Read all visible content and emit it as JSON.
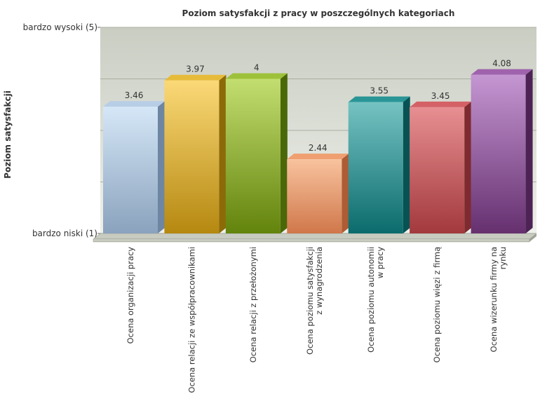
{
  "chart_data": {
    "type": "bar",
    "title": "Poziom satysfakcji z pracy w poszczególnych kategoriach",
    "ylabel": "Poziom satysfakcji",
    "xlabel": "",
    "ylim": [
      1,
      5
    ],
    "y_tick_labels": [
      {
        "value": 5,
        "label": "bardzo wysoki (5)"
      },
      {
        "value": 1,
        "label": "bardzo niski (1)"
      }
    ],
    "categories": [
      [
        "Ocena organizacji pracy"
      ],
      [
        "Ocena relacji ze współpracownikami"
      ],
      [
        "Ocena relacji z przełożonymi"
      ],
      [
        "Ocena poziomu satysfakcji",
        "z wynagrodzenia"
      ],
      [
        "Ocena poziomu autonomii",
        "w pracy"
      ],
      [
        "Ocena poziomu więzi z firmą"
      ],
      [
        "Ocena wizerunku firmy na",
        "rynku"
      ]
    ],
    "values": [
      3.46,
      3.97,
      4,
      2.44,
      3.55,
      3.45,
      4.08
    ],
    "value_labels": [
      "3.46",
      "3.97",
      "4",
      "2.44",
      "3.55",
      "3.45",
      "4.08"
    ],
    "colors": [
      {
        "front_top": "#d5e7f7",
        "front_bottom": "#8aa2bd",
        "side": "#6f86a2",
        "top": "#b8cde6"
      },
      {
        "front_top": "#fbd977",
        "front_bottom": "#b58810",
        "side": "#8c6a08",
        "top": "#e7bb3a"
      },
      {
        "front_top": "#c3de70",
        "front_bottom": "#62830c",
        "side": "#4a6808",
        "top": "#9dc13a"
      },
      {
        "front_top": "#f8c39e",
        "front_bottom": "#d0774a",
        "side": "#ad5c34",
        "top": "#ef9f70"
      },
      {
        "front_top": "#76c3c3",
        "front_bottom": "#0b6b6c",
        "side": "#075354",
        "top": "#2a9596"
      },
      {
        "front_top": "#e78f92",
        "front_bottom": "#a2393d",
        "side": "#7f2a2e",
        "top": "#d46166"
      },
      {
        "front_top": "#c496d2",
        "front_bottom": "#66306f",
        "side": "#4d2355",
        "top": "#9f62ad"
      }
    ],
    "grid": true,
    "legend": "none"
  }
}
